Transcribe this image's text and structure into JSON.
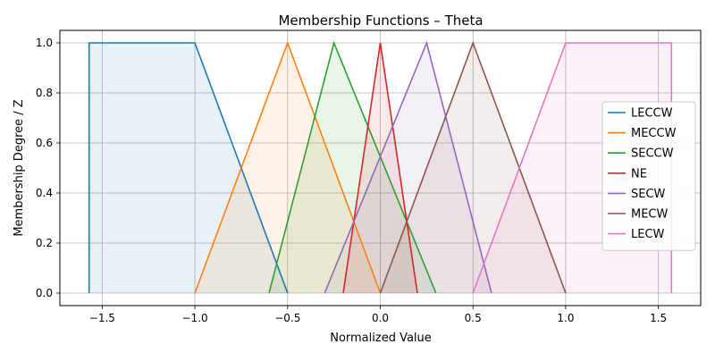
{
  "chart_data": {
    "type": "area",
    "title": "Membership Functions – Theta",
    "xlabel": "Normalized Value",
    "ylabel": "Membership Degree / Z",
    "xlim": [
      -1.7283,
      1.7283
    ],
    "ylim": [
      -0.05,
      1.05
    ],
    "x_ticks": [
      -1.5,
      -1.0,
      -0.5,
      0.0,
      0.5,
      1.0,
      1.5
    ],
    "x_tick_labels": [
      "−1.5",
      "−1.0",
      "−0.5",
      "0.0",
      "0.5",
      "1.0",
      "1.5"
    ],
    "y_ticks": [
      0.0,
      0.2,
      0.4,
      0.6,
      0.8,
      1.0
    ],
    "y_tick_labels": [
      "0.0",
      "0.2",
      "0.4",
      "0.6",
      "0.8",
      "1.0"
    ],
    "grid": true,
    "legend_position": "right",
    "series": [
      {
        "name": "LECCW",
        "color": "#1f77b4",
        "x": [
          -1.5708,
          -1.5708,
          -1.0,
          -0.5
        ],
        "y": [
          0.0,
          1.0,
          1.0,
          0.0
        ]
      },
      {
        "name": "MECCW",
        "color": "#ff7f0e",
        "x": [
          -1.0,
          -0.5,
          0.0
        ],
        "y": [
          0.0,
          1.0,
          0.0
        ]
      },
      {
        "name": "SECCW",
        "color": "#2ca02c",
        "x": [
          -0.6,
          -0.25,
          0.3
        ],
        "y": [
          0.0,
          1.0,
          0.0
        ]
      },
      {
        "name": "NE",
        "color": "#d62728",
        "x": [
          -0.2,
          0.0,
          0.2
        ],
        "y": [
          0.0,
          1.0,
          0.0
        ]
      },
      {
        "name": "SECW",
        "color": "#9467bd",
        "x": [
          -0.3,
          0.25,
          0.6
        ],
        "y": [
          0.0,
          1.0,
          0.0
        ]
      },
      {
        "name": "MECW",
        "color": "#8c564b",
        "x": [
          0.0,
          0.5,
          1.0
        ],
        "y": [
          0.0,
          1.0,
          0.0
        ]
      },
      {
        "name": "LECW",
        "color": "#e377c2",
        "x": [
          0.5,
          1.0,
          1.5708,
          1.5708
        ],
        "y": [
          0.0,
          1.0,
          1.0,
          0.0
        ]
      }
    ]
  }
}
